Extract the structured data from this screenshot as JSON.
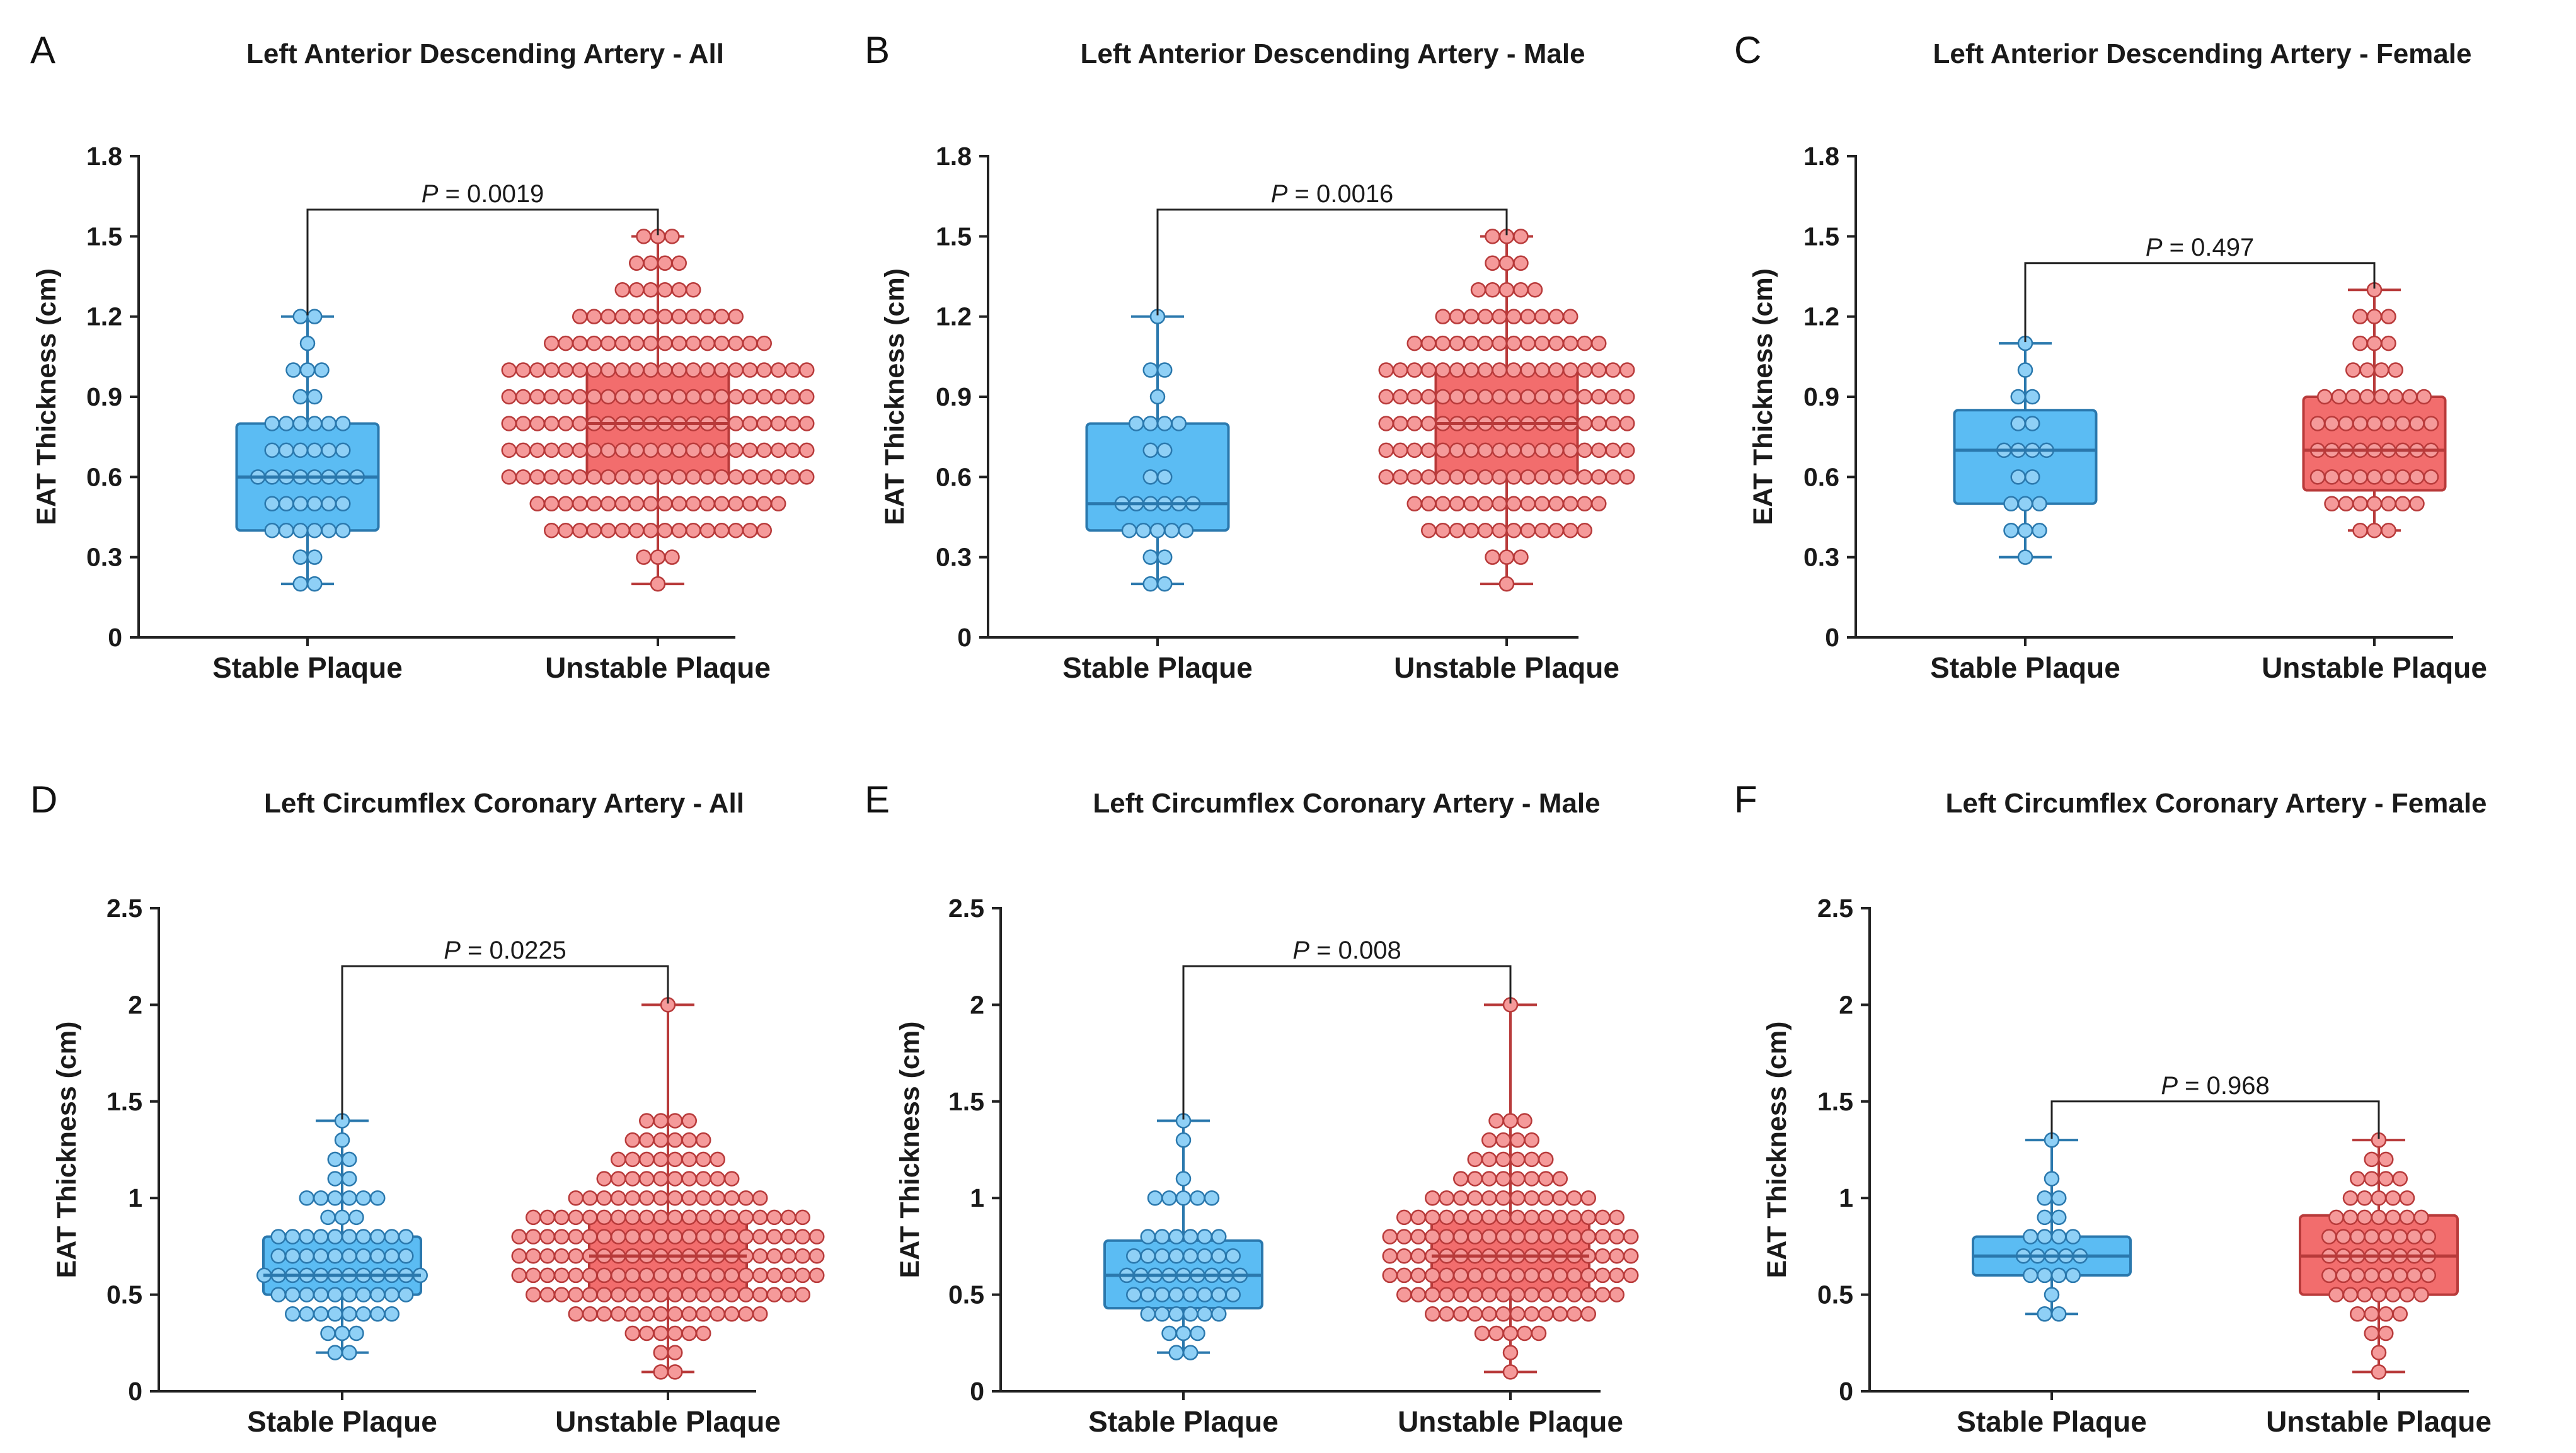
{
  "figure": {
    "colors": {
      "stable_fill": "#5bbcf3",
      "stable_stroke": "#2a78ad",
      "stable_dot": "#8fd0f6",
      "unstable_fill": "#f26d6d",
      "unstable_stroke": "#b83a3a",
      "unstable_dot": "#f59a9a"
    }
  },
  "chart_data": [
    {
      "type": "box",
      "panel": "A",
      "title": "Left Anterior Descending Artery - All",
      "ylabel": "EAT Thickness (cm)",
      "ylim": [
        0,
        1.8
      ],
      "yticks": [
        "0",
        "0.3",
        "0.6",
        "0.9",
        "1.2",
        "1.5",
        "1.8"
      ],
      "ytick_values": [
        0,
        0.3,
        0.6,
        0.9,
        1.2,
        1.5,
        1.8
      ],
      "categories": [
        "Stable Plaque",
        "Unstable Plaque"
      ],
      "p_label": "P",
      "p_value": " = 0.0019",
      "bracket_y": 1.6,
      "series": [
        {
          "name": "Stable Plaque",
          "min": 0.2,
          "q1": 0.4,
          "median": 0.6,
          "q3": 0.8,
          "max": 1.2,
          "counts": {
            "0.2": 2,
            "0.3": 2,
            "0.4": 6,
            "0.5": 6,
            "0.6": 8,
            "0.7": 6,
            "0.8": 6,
            "0.9": 2,
            "1.0": 3,
            "1.1": 1,
            "1.2": 2
          }
        },
        {
          "name": "Unstable Plaque",
          "min": 0.2,
          "q1": 0.6,
          "median": 0.8,
          "q3": 1.0,
          "max": 1.5,
          "counts": {
            "0.2": 1,
            "0.3": 3,
            "0.4": 16,
            "0.5": 18,
            "0.6": 22,
            "0.7": 22,
            "0.8": 22,
            "0.9": 22,
            "1.0": 22,
            "1.1": 16,
            "1.2": 12,
            "1.3": 6,
            "1.4": 4,
            "1.5": 3
          }
        }
      ]
    },
    {
      "type": "box",
      "panel": "B",
      "title": "Left Anterior Descending Artery - Male",
      "ylabel": "EAT Thickness (cm)",
      "ylim": [
        0,
        1.8
      ],
      "yticks": [
        "0",
        "0.3",
        "0.6",
        "0.9",
        "1.2",
        "1.5",
        "1.8"
      ],
      "ytick_values": [
        0,
        0.3,
        0.6,
        0.9,
        1.2,
        1.5,
        1.8
      ],
      "categories": [
        "Stable Plaque",
        "Unstable Plaque"
      ],
      "p_label": "P",
      "p_value": " = 0.0016",
      "bracket_y": 1.6,
      "series": [
        {
          "name": "Stable Plaque",
          "min": 0.2,
          "q1": 0.4,
          "median": 0.5,
          "q3": 0.8,
          "max": 1.2,
          "counts": {
            "0.2": 2,
            "0.3": 2,
            "0.4": 5,
            "0.5": 6,
            "0.6": 2,
            "0.7": 2,
            "0.8": 4,
            "0.9": 1,
            "1.0": 2,
            "1.2": 1
          }
        },
        {
          "name": "Unstable Plaque",
          "min": 0.2,
          "q1": 0.6,
          "median": 0.8,
          "q3": 1.0,
          "max": 1.5,
          "counts": {
            "0.2": 1,
            "0.3": 3,
            "0.4": 12,
            "0.5": 14,
            "0.6": 18,
            "0.7": 18,
            "0.8": 18,
            "0.9": 18,
            "1.0": 18,
            "1.1": 14,
            "1.2": 10,
            "1.3": 5,
            "1.4": 3,
            "1.5": 3
          }
        }
      ]
    },
    {
      "type": "box",
      "panel": "C",
      "title": "Left Anterior Descending Artery - Female",
      "ylabel": "EAT Thickness (cm)",
      "ylim": [
        0,
        1.8
      ],
      "yticks": [
        "0",
        "0.3",
        "0.6",
        "0.9",
        "1.2",
        "1.5",
        "1.8"
      ],
      "ytick_values": [
        0,
        0.3,
        0.6,
        0.9,
        1.2,
        1.5,
        1.8
      ],
      "categories": [
        "Stable Plaque",
        "Unstable Plaque"
      ],
      "p_label": "P",
      "p_value": " = 0.497",
      "bracket_y": 1.4,
      "series": [
        {
          "name": "Stable Plaque",
          "min": 0.3,
          "q1": 0.5,
          "median": 0.7,
          "q3": 0.85,
          "max": 1.1,
          "counts": {
            "0.3": 1,
            "0.4": 3,
            "0.5": 3,
            "0.6": 2,
            "0.7": 4,
            "0.8": 2,
            "0.9": 2,
            "1.0": 1,
            "1.1": 1
          }
        },
        {
          "name": "Unstable Plaque",
          "min": 0.4,
          "q1": 0.55,
          "median": 0.7,
          "q3": 0.9,
          "max": 1.3,
          "counts": {
            "0.4": 3,
            "0.5": 7,
            "0.6": 9,
            "0.7": 9,
            "0.8": 9,
            "0.9": 8,
            "1.0": 4,
            "1.1": 3,
            "1.2": 3,
            "1.3": 1
          }
        }
      ]
    },
    {
      "type": "box",
      "panel": "D",
      "title": "Left Circumflex Coronary Artery - All",
      "ylabel": "EAT Thickness (cm)",
      "ylim": [
        0,
        2.5
      ],
      "yticks": [
        "0",
        "0.5",
        "1",
        "1.5",
        "2",
        "2.5"
      ],
      "ytick_values": [
        0,
        0.5,
        1,
        1.5,
        2,
        2.5
      ],
      "categories": [
        "Stable Plaque",
        "Unstable Plaque"
      ],
      "p_label": "P",
      "p_value": " = 0.0225",
      "bracket_y": 2.2,
      "series": [
        {
          "name": "Stable Plaque",
          "min": 0.2,
          "q1": 0.5,
          "median": 0.6,
          "q3": 0.8,
          "max": 1.4,
          "counts": {
            "0.2": 2,
            "0.3": 3,
            "0.4": 8,
            "0.5": 10,
            "0.6": 12,
            "0.7": 10,
            "0.8": 10,
            "0.9": 3,
            "1.0": 6,
            "1.1": 2,
            "1.2": 2,
            "1.3": 1,
            "1.4": 1
          }
        },
        {
          "name": "Unstable Plaque",
          "min": 0.1,
          "q1": 0.5,
          "median": 0.7,
          "q3": 0.9,
          "max": 2.0,
          "counts": {
            "0.1": 2,
            "0.2": 2,
            "0.3": 6,
            "0.4": 14,
            "0.5": 20,
            "0.6": 22,
            "0.7": 22,
            "0.8": 22,
            "0.9": 20,
            "1.0": 14,
            "1.1": 10,
            "1.2": 8,
            "1.3": 6,
            "1.4": 4,
            "2.0": 1
          }
        }
      ]
    },
    {
      "type": "box",
      "panel": "E",
      "title": "Left Circumflex Coronary Artery - Male",
      "ylabel": "EAT Thickness (cm)",
      "ylim": [
        0,
        2.5
      ],
      "yticks": [
        "0",
        "0.5",
        "1",
        "1.5",
        "2",
        "2.5"
      ],
      "ytick_values": [
        0,
        0.5,
        1,
        1.5,
        2,
        2.5
      ],
      "categories": [
        "Stable Plaque",
        "Unstable Plaque"
      ],
      "p_label": "P",
      "p_value": " = 0.008",
      "bracket_y": 2.2,
      "series": [
        {
          "name": "Stable Plaque",
          "min": 0.2,
          "q1": 0.43,
          "median": 0.6,
          "q3": 0.78,
          "max": 1.4,
          "counts": {
            "0.2": 2,
            "0.3": 3,
            "0.4": 6,
            "0.5": 8,
            "0.6": 9,
            "0.7": 8,
            "0.8": 6,
            "1.0": 5,
            "1.1": 1,
            "1.3": 1,
            "1.4": 1
          }
        },
        {
          "name": "Unstable Plaque",
          "min": 0.1,
          "q1": 0.5,
          "median": 0.7,
          "q3": 0.9,
          "max": 2.0,
          "counts": {
            "0.1": 1,
            "0.2": 1,
            "0.3": 5,
            "0.4": 12,
            "0.5": 16,
            "0.6": 18,
            "0.7": 18,
            "0.8": 18,
            "0.9": 16,
            "1.0": 12,
            "1.1": 8,
            "1.2": 6,
            "1.3": 4,
            "1.4": 3,
            "2.0": 1
          }
        }
      ]
    },
    {
      "type": "box",
      "panel": "F",
      "title": "Left Circumflex Coronary Artery - Female",
      "ylabel": "EAT Thickness (cm)",
      "ylim": [
        0,
        2.5
      ],
      "yticks": [
        "0",
        "0.5",
        "1",
        "1.5",
        "2",
        "2.5"
      ],
      "ytick_values": [
        0,
        0.5,
        1,
        1.5,
        2,
        2.5
      ],
      "categories": [
        "Stable Plaque",
        "Unstable Plaque"
      ],
      "p_label": "P",
      "p_value": " = 0.968",
      "bracket_y": 1.5,
      "series": [
        {
          "name": "Stable Plaque",
          "min": 0.4,
          "q1": 0.6,
          "median": 0.7,
          "q3": 0.8,
          "max": 1.3,
          "counts": {
            "0.4": 2,
            "0.5": 1,
            "0.6": 4,
            "0.7": 5,
            "0.8": 4,
            "0.9": 2,
            "1.0": 2,
            "1.1": 1,
            "1.3": 1
          }
        },
        {
          "name": "Unstable Plaque",
          "min": 0.1,
          "q1": 0.5,
          "median": 0.7,
          "q3": 0.91,
          "max": 1.3,
          "counts": {
            "0.1": 1,
            "0.2": 1,
            "0.3": 2,
            "0.4": 4,
            "0.5": 7,
            "0.6": 8,
            "0.7": 8,
            "0.8": 8,
            "0.9": 7,
            "1.0": 5,
            "1.1": 4,
            "1.2": 2,
            "1.3": 1
          }
        }
      ]
    }
  ]
}
